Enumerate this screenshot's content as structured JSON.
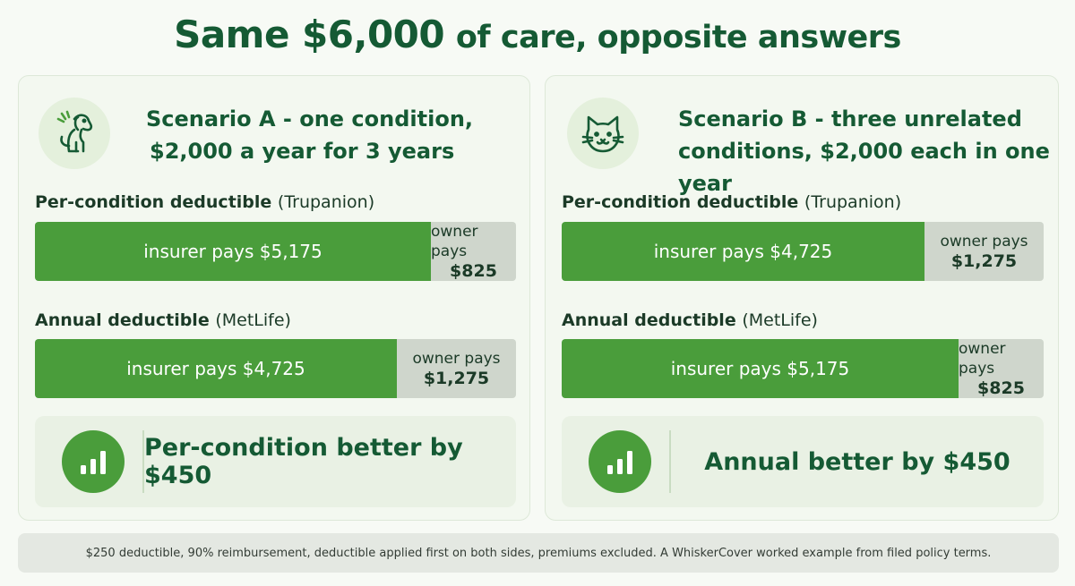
{
  "title": {
    "highlight": "Same $6,000",
    "rest": "of care, opposite answers"
  },
  "colors": {
    "green": "#4a9d3b",
    "dark_green": "#155a34",
    "grey": "#cfd6cc"
  },
  "scenario_a": {
    "icon": "dog-icon",
    "title_line1": "Scenario A - one condition,",
    "title_line2": "$2,000 a year for 3 years",
    "row1": {
      "label": "Per-condition deductible",
      "provider": "(Trupanion)",
      "insurer_text": "insurer pays $5,175",
      "insurer_value": 5175,
      "owner_label": "owner pays",
      "owner_amount": "$825",
      "owner_value": 825
    },
    "row2": {
      "label": "Annual deductible",
      "provider": "(MetLife)",
      "insurer_text": "insurer pays $4,725",
      "insurer_value": 4725,
      "owner_label": "owner pays",
      "owner_amount": "$1,275",
      "owner_value": 1275
    },
    "result": {
      "icon": "bar-chart-icon",
      "text": "Per-condition better by $450"
    }
  },
  "scenario_b": {
    "icon": "cat-icon",
    "title_line1": "Scenario B - three unrelated",
    "title_line2": "conditions, $2,000 each in one year",
    "row1": {
      "label": "Per-condition deductible",
      "provider": "(Trupanion)",
      "insurer_text": "insurer pays $4,725",
      "insurer_value": 4725,
      "owner_label": "owner pays",
      "owner_amount": "$1,275",
      "owner_value": 1275
    },
    "row2": {
      "label": "Annual deductible",
      "provider": "(MetLife)",
      "insurer_text": "insurer pays $5,175",
      "insurer_value": 5175,
      "owner_label": "owner pays",
      "owner_amount": "$825",
      "owner_value": 825
    },
    "result": {
      "icon": "bar-chart-icon",
      "text": "Annual better by $450"
    }
  },
  "footnote": "$250 deductible, 90% reimbursement, deductible applied first on both sides, premiums excluded. A WhiskerCover worked example from filed policy terms."
}
